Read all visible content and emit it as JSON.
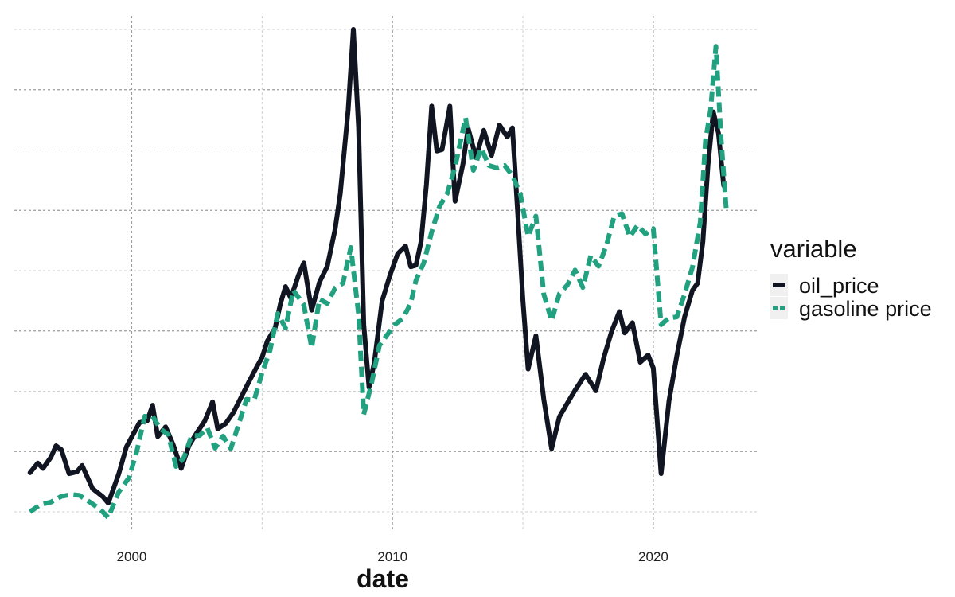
{
  "chart_data": {
    "type": "line",
    "title": "",
    "xlabel": "date",
    "ylabel": "",
    "xlim": [
      1995.5,
      2024.0
    ],
    "ylim": [
      0,
      1
    ],
    "x_ticks": [
      2000,
      2010,
      2020
    ],
    "x_tick_labels": [
      "2000",
      "2010",
      "2020"
    ],
    "y_tick_labels": [],
    "grid": true,
    "legend": {
      "title": "variable",
      "placement": "right"
    },
    "series": [
      {
        "name": "oil_price",
        "color": "#111522",
        "dash": "solid",
        "points": [
          [
            1996.1,
            0.081
          ],
          [
            1996.4,
            0.101
          ],
          [
            1996.6,
            0.09
          ],
          [
            1996.9,
            0.113
          ],
          [
            1997.1,
            0.137
          ],
          [
            1997.3,
            0.129
          ],
          [
            1997.6,
            0.079
          ],
          [
            1997.9,
            0.083
          ],
          [
            1998.1,
            0.096
          ],
          [
            1998.5,
            0.048
          ],
          [
            1998.9,
            0.031
          ],
          [
            1999.1,
            0.018
          ],
          [
            1999.5,
            0.078
          ],
          [
            1999.8,
            0.135
          ],
          [
            2000.0,
            0.155
          ],
          [
            2000.3,
            0.185
          ],
          [
            2000.6,
            0.189
          ],
          [
            2000.8,
            0.221
          ],
          [
            2001.0,
            0.156
          ],
          [
            2001.3,
            0.176
          ],
          [
            2001.6,
            0.138
          ],
          [
            2001.9,
            0.09
          ],
          [
            2002.2,
            0.138
          ],
          [
            2002.5,
            0.164
          ],
          [
            2002.8,
            0.188
          ],
          [
            2003.1,
            0.228
          ],
          [
            2003.3,
            0.172
          ],
          [
            2003.6,
            0.183
          ],
          [
            2003.9,
            0.206
          ],
          [
            2004.2,
            0.238
          ],
          [
            2004.5,
            0.27
          ],
          [
            2004.8,
            0.301
          ],
          [
            2005.0,
            0.32
          ],
          [
            2005.2,
            0.354
          ],
          [
            2005.5,
            0.381
          ],
          [
            2005.7,
            0.431
          ],
          [
            2005.9,
            0.467
          ],
          [
            2006.1,
            0.443
          ],
          [
            2006.4,
            0.491
          ],
          [
            2006.6,
            0.516
          ],
          [
            2006.9,
            0.418
          ],
          [
            2007.2,
            0.476
          ],
          [
            2007.5,
            0.509
          ],
          [
            2007.8,
            0.586
          ],
          [
            2008.0,
            0.66
          ],
          [
            2008.3,
            0.834
          ],
          [
            2008.5,
            1.0
          ],
          [
            2008.7,
            0.796
          ],
          [
            2008.9,
            0.388
          ],
          [
            2009.1,
            0.258
          ],
          [
            2009.3,
            0.309
          ],
          [
            2009.6,
            0.437
          ],
          [
            2009.9,
            0.49
          ],
          [
            2010.2,
            0.535
          ],
          [
            2010.5,
            0.551
          ],
          [
            2010.7,
            0.508
          ],
          [
            2010.9,
            0.511
          ],
          [
            2011.1,
            0.561
          ],
          [
            2011.3,
            0.678
          ],
          [
            2011.5,
            0.841
          ],
          [
            2011.7,
            0.748
          ],
          [
            2011.9,
            0.751
          ],
          [
            2012.2,
            0.841
          ],
          [
            2012.4,
            0.644
          ],
          [
            2012.7,
            0.721
          ],
          [
            2012.9,
            0.795
          ],
          [
            2013.2,
            0.734
          ],
          [
            2013.5,
            0.791
          ],
          [
            2013.8,
            0.739
          ],
          [
            2014.1,
            0.802
          ],
          [
            2014.4,
            0.777
          ],
          [
            2014.6,
            0.796
          ],
          [
            2014.8,
            0.62
          ],
          [
            2015.0,
            0.438
          ],
          [
            2015.2,
            0.296
          ],
          [
            2015.5,
            0.365
          ],
          [
            2015.8,
            0.233
          ],
          [
            2016.1,
            0.131
          ],
          [
            2016.4,
            0.197
          ],
          [
            2016.7,
            0.225
          ],
          [
            2017.0,
            0.252
          ],
          [
            2017.4,
            0.285
          ],
          [
            2017.8,
            0.251
          ],
          [
            2018.1,
            0.319
          ],
          [
            2018.4,
            0.374
          ],
          [
            2018.7,
            0.415
          ],
          [
            2018.9,
            0.371
          ],
          [
            2019.2,
            0.392
          ],
          [
            2019.5,
            0.31
          ],
          [
            2019.8,
            0.325
          ],
          [
            2020.0,
            0.298
          ],
          [
            2020.3,
            0.079
          ],
          [
            2020.6,
            0.23
          ],
          [
            2020.9,
            0.323
          ],
          [
            2021.2,
            0.404
          ],
          [
            2021.5,
            0.459
          ],
          [
            2021.7,
            0.474
          ],
          [
            2021.9,
            0.56
          ],
          [
            2022.1,
            0.72
          ],
          [
            2022.3,
            0.829
          ],
          [
            2022.5,
            0.785
          ],
          [
            2022.7,
            0.676
          ]
        ]
      },
      {
        "name": "gasoline price",
        "color": "#21A17F",
        "dash": "dashed",
        "points": [
          [
            1996.1,
            0.0
          ],
          [
            1996.5,
            0.015
          ],
          [
            1996.9,
            0.02
          ],
          [
            1997.3,
            0.032
          ],
          [
            1997.7,
            0.036
          ],
          [
            1998.0,
            0.034
          ],
          [
            1998.4,
            0.02
          ],
          [
            1998.8,
            0.005
          ],
          [
            1999.1,
            -0.012
          ],
          [
            1999.5,
            0.041
          ],
          [
            1999.9,
            0.071
          ],
          [
            2000.2,
            0.126
          ],
          [
            2000.5,
            0.198
          ],
          [
            2000.8,
            0.198
          ],
          [
            2001.1,
            0.172
          ],
          [
            2001.4,
            0.16
          ],
          [
            2001.7,
            0.094
          ],
          [
            2002.0,
            0.112
          ],
          [
            2002.3,
            0.158
          ],
          [
            2002.6,
            0.158
          ],
          [
            2002.9,
            0.174
          ],
          [
            2003.2,
            0.132
          ],
          [
            2003.5,
            0.157
          ],
          [
            2003.8,
            0.131
          ],
          [
            2004.1,
            0.181
          ],
          [
            2004.4,
            0.233
          ],
          [
            2004.7,
            0.232
          ],
          [
            2005.0,
            0.288
          ],
          [
            2005.3,
            0.334
          ],
          [
            2005.6,
            0.411
          ],
          [
            2005.9,
            0.381
          ],
          [
            2006.2,
            0.459
          ],
          [
            2006.6,
            0.429
          ],
          [
            2006.9,
            0.34
          ],
          [
            2007.2,
            0.441
          ],
          [
            2007.5,
            0.432
          ],
          [
            2007.8,
            0.464
          ],
          [
            2008.1,
            0.474
          ],
          [
            2008.4,
            0.548
          ],
          [
            2008.7,
            0.409
          ],
          [
            2008.9,
            0.202
          ],
          [
            2009.2,
            0.267
          ],
          [
            2009.5,
            0.345
          ],
          [
            2009.8,
            0.367
          ],
          [
            2010.1,
            0.389
          ],
          [
            2010.4,
            0.401
          ],
          [
            2010.7,
            0.432
          ],
          [
            2010.9,
            0.48
          ],
          [
            2011.2,
            0.516
          ],
          [
            2011.5,
            0.58
          ],
          [
            2011.8,
            0.633
          ],
          [
            2012.1,
            0.66
          ],
          [
            2012.4,
            0.715
          ],
          [
            2012.8,
            0.817
          ],
          [
            2013.1,
            0.708
          ],
          [
            2013.4,
            0.754
          ],
          [
            2013.7,
            0.718
          ],
          [
            2014.0,
            0.713
          ],
          [
            2014.3,
            0.718
          ],
          [
            2014.6,
            0.697
          ],
          [
            2014.9,
            0.659
          ],
          [
            2015.2,
            0.571
          ],
          [
            2015.5,
            0.613
          ],
          [
            2015.8,
            0.451
          ],
          [
            2016.1,
            0.396
          ],
          [
            2016.4,
            0.452
          ],
          [
            2016.7,
            0.47
          ],
          [
            2017.0,
            0.501
          ],
          [
            2017.3,
            0.465
          ],
          [
            2017.6,
            0.531
          ],
          [
            2017.9,
            0.509
          ],
          [
            2018.2,
            0.552
          ],
          [
            2018.5,
            0.613
          ],
          [
            2018.8,
            0.618
          ],
          [
            2019.1,
            0.57
          ],
          [
            2019.4,
            0.594
          ],
          [
            2019.7,
            0.576
          ],
          [
            2020.0,
            0.587
          ],
          [
            2020.3,
            0.388
          ],
          [
            2020.6,
            0.402
          ],
          [
            2020.9,
            0.404
          ],
          [
            2021.2,
            0.451
          ],
          [
            2021.5,
            0.507
          ],
          [
            2021.8,
            0.6
          ],
          [
            2022.0,
            0.77
          ],
          [
            2022.2,
            0.835
          ],
          [
            2022.4,
            0.965
          ],
          [
            2022.6,
            0.774
          ],
          [
            2022.8,
            0.625
          ]
        ]
      }
    ]
  }
}
